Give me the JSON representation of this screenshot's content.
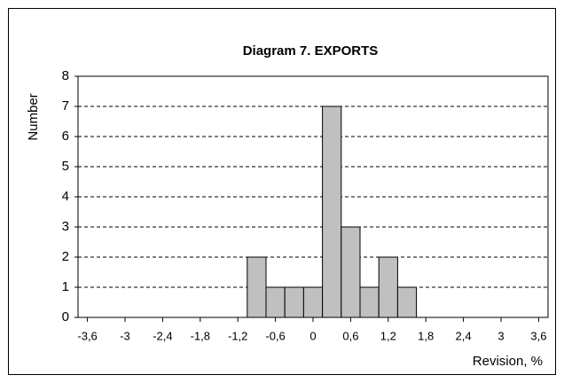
{
  "chart_data": {
    "type": "histogram",
    "title": "Diagram 7.  EXPORTS",
    "x_label": "Revision, %",
    "y_label": "Number",
    "bins": [
      -1.05,
      -0.75,
      -0.45,
      -0.15,
      0.15,
      0.45,
      0.75,
      1.05,
      1.35,
      1.65
    ],
    "values": [
      2,
      1,
      1,
      1,
      7,
      3,
      1,
      2,
      1
    ],
    "color": "#c0c0c0",
    "xlim": [
      -3.75,
      3.75
    ],
    "xticks": [
      {
        "value": -3.6,
        "label": "-3,6"
      },
      -3,
      {
        "value": -2.4,
        "label": "-2,4"
      },
      {
        "value": -1.8,
        "label": "-1,8"
      },
      {
        "value": -1.2,
        "label": "-1,2"
      },
      {
        "value": -0.6,
        "label": "-0,6"
      },
      0,
      {
        "value": 0.6,
        "label": "0,6"
      },
      {
        "value": 1.2,
        "label": "1,2"
      },
      {
        "value": 1.8,
        "label": "1,8"
      },
      {
        "value": 2.4,
        "label": "2,4"
      },
      3,
      {
        "value": 3.6,
        "label": "3,6"
      }
    ],
    "ylim": [
      0,
      8
    ],
    "yticks": [
      0,
      1,
      2,
      3,
      4,
      5,
      6,
      7,
      8
    ],
    "grid": true
  }
}
